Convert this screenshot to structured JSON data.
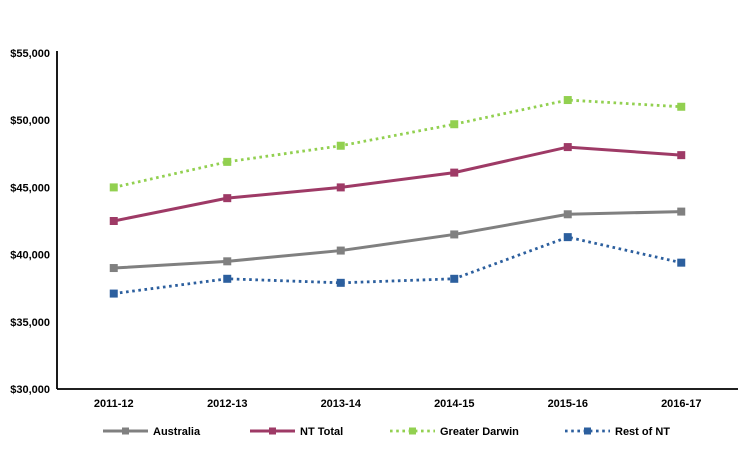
{
  "chart_data": {
    "type": "line",
    "title": "",
    "categories": [
      "2011-12",
      "2012-13",
      "2013-14",
      "2014-15",
      "2015-16",
      "2016-17"
    ],
    "series": [
      {
        "name": "Australia",
        "color": "#808080",
        "line_style": "solid",
        "marker": "square",
        "values": [
          39000,
          39500,
          40300,
          41500,
          43000,
          43200
        ]
      },
      {
        "name": "NT Total",
        "color": "#9E3A66",
        "line_style": "solid",
        "marker": "square",
        "values": [
          42500,
          44200,
          45000,
          46100,
          48000,
          47400
        ]
      },
      {
        "name": "Greater Darwin",
        "color": "#92D050",
        "line_style": "dotted",
        "marker": "square",
        "values": [
          45000,
          46900,
          48100,
          49700,
          51500,
          51000
        ]
      },
      {
        "name": "Rest of NT",
        "color": "#2C5F9E",
        "line_style": "dotted",
        "marker": "square",
        "values": [
          37100,
          38200,
          37900,
          38200,
          41300,
          39400
        ]
      }
    ],
    "y_axis": {
      "tick_labels": [
        "$30,000",
        "$35,000",
        "$40,000",
        "$45,000",
        "$50,000",
        "$55,000"
      ],
      "min": 30000,
      "max": 55000,
      "tick_step": 5000
    },
    "xlabel": "",
    "ylabel": "",
    "grid": false,
    "legend_position": "bottom",
    "axis_color": "#000000"
  }
}
